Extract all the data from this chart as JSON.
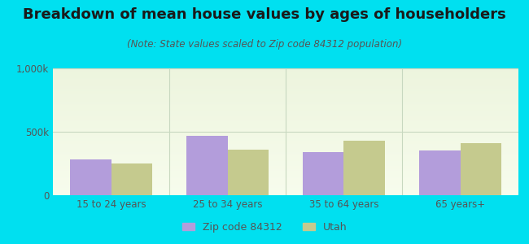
{
  "title": "Breakdown of mean house values by ages of householders",
  "subtitle": "(Note: State values scaled to Zip code 84312 population)",
  "categories": [
    "15 to 24 years",
    "25 to 34 years",
    "35 to 64 years",
    "65 years+"
  ],
  "zip_values": [
    280000,
    470000,
    340000,
    350000
  ],
  "utah_values": [
    250000,
    360000,
    430000,
    410000
  ],
  "zip_color": "#b39ddb",
  "utah_color": "#c5ca8e",
  "background_outer": "#00e0f0",
  "ylim": [
    0,
    1000000
  ],
  "yticks": [
    0,
    500000,
    1000000
  ],
  "ytick_labels": [
    "0",
    "500k",
    "1,000k"
  ],
  "legend_labels": [
    "Zip code 84312",
    "Utah"
  ],
  "title_fontsize": 13,
  "subtitle_fontsize": 8.5,
  "bar_width": 0.35,
  "grid_color": "#c8d8c0",
  "tick_color": "#555555"
}
